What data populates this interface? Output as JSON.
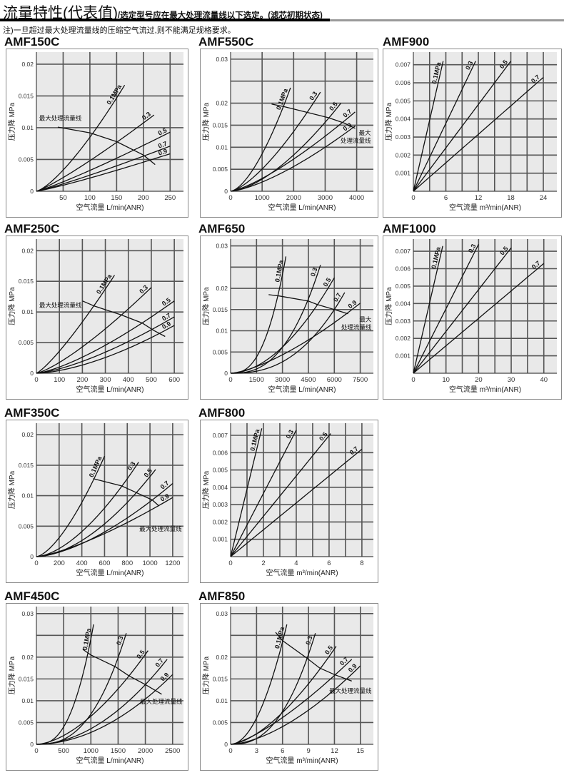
{
  "header": {
    "title": "流量特性(代表值)",
    "subtitle": "/选定型号应在最大处理流量线以下选定。(滤芯初期状态)",
    "note": "注)一旦超过最大处理流量线的压缩空气流过,则不能满足规格要求。"
  },
  "chart_data": [
    {
      "type": "line",
      "title": "AMF150C",
      "xlabel": "空气流量 L/min(ANR)",
      "ylabel": "压力降 MPa",
      "xlim": [
        0,
        275
      ],
      "ylim": [
        0,
        0.0219
      ],
      "xticks": [
        50,
        100,
        150,
        200,
        250
      ],
      "yticks": [
        0,
        0.005,
        0.01,
        0.015,
        0.02
      ],
      "grid": true,
      "grid_x_step": 50,
      "grid_y_step": 0.005,
      "series": [
        {
          "name": "0.1MPa",
          "points": [
            [
              100,
              0.0085
            ],
            [
              165,
              0.0167
            ]
          ]
        },
        {
          "name": "0.3",
          "points": [
            [
              150,
              0.0077
            ],
            [
              220,
              0.012
            ]
          ]
        },
        {
          "name": "0.5",
          "points": [
            [
              150,
              0.0052
            ],
            [
              250,
              0.0093
            ]
          ]
        },
        {
          "name": "0.7",
          "points": [
            [
              150,
              0.004
            ],
            [
              250,
              0.0071
            ]
          ]
        },
        {
          "name": "0.9",
          "points": [
            [
              150,
              0.0033
            ],
            [
              250,
              0.0059
            ]
          ]
        }
      ],
      "max_flow_line": {
        "points": [
          [
            40,
            0.0101
          ],
          [
            100,
            0.0092
          ],
          [
            150,
            0.0078
          ],
          [
            200,
            0.0057
          ],
          [
            222,
            0.0042
          ]
        ],
        "label": [
          "最大处理流量线"
        ],
        "label_at": [
          5,
          0.0112
        ]
      }
    },
    {
      "type": "line",
      "title": "AMF550C",
      "xlabel": "空气流量 L/min(ANR)",
      "ylabel": "压力降 MPa",
      "xlim": [
        0,
        4530
      ],
      "ylim": [
        0,
        0.0316
      ],
      "xticks": [
        0,
        1000,
        2000,
        3000,
        4000
      ],
      "yticks": [
        0,
        0.005,
        0.01,
        0.015,
        0.02,
        0.03
      ],
      "grid": true,
      "grid_x_step": 1000,
      "grid_y_step": 0.005,
      "series": [
        {
          "name": "0.1MPa",
          "points": [
            [
              1000,
              0.0085
            ],
            [
              1900,
              0.0235
            ]
          ]
        },
        {
          "name": "0.3",
          "points": [
            [
              1500,
              0.009
            ],
            [
              2850,
              0.0225
            ]
          ]
        },
        {
          "name": "0.5",
          "points": [
            [
              3100,
              0.0165
            ],
            [
              3500,
              0.02
            ]
          ]
        },
        {
          "name": "0.7",
          "points": [
            [
              3000,
              0.0125
            ],
            [
              3950,
              0.018
            ]
          ]
        },
        {
          "name": "0.9",
          "points": [
            [
              3000,
              0.01
            ],
            [
              3950,
              0.0148
            ]
          ]
        }
      ],
      "max_flow_line": {
        "points": [
          [
            1300,
            0.0198
          ],
          [
            1700,
            0.0192
          ],
          [
            2500,
            0.0178
          ],
          [
            3100,
            0.0167
          ],
          [
            3600,
            0.0155
          ],
          [
            3950,
            0.0143
          ]
        ],
        "label": [
          "最大",
          "处理流量线"
        ],
        "label_at": [
          4450,
          0.0128
        ]
      }
    },
    {
      "type": "line",
      "title": "AMF900",
      "xlabel": "空气流量 m³/min(ANR)",
      "ylabel": "压力降 MPa",
      "xlim": [
        0,
        26.5
      ],
      "ylim": [
        0,
        0.0077
      ],
      "xticks": [
        0,
        6,
        12,
        18,
        24
      ],
      "yticks": [
        0.001,
        0.002,
        0.003,
        0.004,
        0.005,
        0.006,
        0.007
      ],
      "grid": true,
      "grid_x_step": 3,
      "grid_y_step": 0.001,
      "series": [
        {
          "name": "0.1MPa",
          "points": [
            [
              5.5,
              0.0072
            ]
          ]
        },
        {
          "name": "0.3",
          "points": [
            [
              11.5,
              0.0072
            ]
          ]
        },
        {
          "name": "0.5",
          "points": [
            [
              18,
              0.0072
            ]
          ]
        },
        {
          "name": "0.7",
          "points": [
            [
              24,
              0.0063
            ]
          ]
        }
      ]
    },
    {
      "type": "line",
      "title": "AMF250C",
      "xlabel": "空气流量 L/min(ANR)",
      "ylabel": "压力降 MPa",
      "xlim": [
        0,
        640
      ],
      "ylim": [
        0,
        0.0219
      ],
      "xticks": [
        0,
        100,
        200,
        300,
        400,
        500,
        600
      ],
      "yticks": [
        0,
        0.005,
        0.01,
        0.015,
        0.02
      ],
      "grid": true,
      "grid_x_step": 100,
      "grid_y_step": 0.005,
      "series": [
        {
          "name": "0.1MPa",
          "points": [
            [
              250,
              0.011
            ],
            [
              340,
              0.016
            ]
          ]
        },
        {
          "name": "0.3",
          "points": [
            [
              370,
              0.0095
            ],
            [
              500,
              0.014
            ]
          ]
        },
        {
          "name": "0.5",
          "points": [
            [
              460,
              0.0082
            ],
            [
              600,
              0.0118
            ]
          ]
        },
        {
          "name": "0.7",
          "points": [
            [
              500,
              0.0071
            ],
            [
              600,
              0.0092
            ]
          ]
        },
        {
          "name": "0.9",
          "points": [
            [
              520,
              0.0062
            ],
            [
              600,
              0.0078
            ]
          ]
        }
      ],
      "max_flow_line": {
        "points": [
          [
            200,
            0.0118
          ],
          [
            250,
            0.011
          ],
          [
            370,
            0.0095
          ],
          [
            460,
            0.0082
          ],
          [
            510,
            0.007
          ],
          [
            560,
            0.006
          ]
        ],
        "label": [
          "最大处理流量线"
        ],
        "label_at": [
          12,
          0.0108
        ]
      }
    },
    {
      "type": "line",
      "title": "AMF650",
      "xlabel": "空气流量 L/min(ANR)",
      "ylabel": "压力降 MPa",
      "xlim": [
        0,
        8260
      ],
      "ylim": [
        0,
        0.0316
      ],
      "xticks": [
        0,
        1500,
        3000,
        4500,
        6000,
        7500
      ],
      "yticks": [
        0,
        0.005,
        0.01,
        0.015,
        0.02,
        0.03
      ],
      "grid": true,
      "grid_x_step": 1500,
      "grid_y_step": 0.005,
      "series": [
        {
          "name": "0.1MPa",
          "points": [
            [
              2800,
              0.018
            ],
            [
              3200,
              0.0275
            ]
          ]
        },
        {
          "name": "0.3",
          "points": [
            [
              4500,
              0.017
            ],
            [
              5200,
              0.0255
            ]
          ]
        },
        {
          "name": "0.5",
          "points": [
            [
              5000,
              0.016
            ],
            [
              6000,
              0.0225
            ]
          ]
        },
        {
          "name": "0.7",
          "points": [
            [
              6000,
              0.015
            ],
            [
              6600,
              0.019
            ]
          ]
        },
        {
          "name": "0.9",
          "points": [
            [
              6700,
              0.014
            ],
            [
              7500,
              0.0165
            ]
          ]
        }
      ],
      "max_flow_line": {
        "points": [
          [
            2200,
            0.0185
          ],
          [
            2800,
            0.0182
          ],
          [
            4500,
            0.017
          ],
          [
            5000,
            0.0162
          ],
          [
            6000,
            0.015
          ],
          [
            6800,
            0.014
          ]
        ],
        "label": [
          "最大",
          "处理流量线"
        ],
        "label_at": [
          8150,
          0.0122
        ]
      }
    },
    {
      "type": "line",
      "title": "AMF1000",
      "xlabel": "空气流量 m³/min(ANR)",
      "ylabel": "压力降 MPa",
      "xlim": [
        0,
        44
      ],
      "ylim": [
        0,
        0.0077
      ],
      "xticks": [
        0,
        10,
        20,
        30,
        40
      ],
      "yticks": [
        0.001,
        0.002,
        0.003,
        0.004,
        0.005,
        0.006,
        0.007
      ],
      "grid": true,
      "grid_x_step": 5,
      "grid_y_step": 0.001,
      "series": [
        {
          "name": "0.1MPa",
          "points": [
            [
              9,
              0.0073
            ]
          ]
        },
        {
          "name": "0.3",
          "points": [
            [
              20,
              0.0074
            ]
          ]
        },
        {
          "name": "0.5",
          "points": [
            [
              30,
              0.0072
            ]
          ]
        },
        {
          "name": "0.7",
          "points": [
            [
              40,
              0.0063
            ]
          ]
        }
      ]
    },
    {
      "type": "line",
      "title": "AMF350C",
      "xlabel": "空气流量 L/min(ANR)",
      "ylabel": "压力降 MPa",
      "xlim": [
        0,
        1295
      ],
      "ylim": [
        0,
        0.0219
      ],
      "xticks": [
        0,
        200,
        400,
        600,
        800,
        1000,
        1200
      ],
      "yticks": [
        0,
        0.005,
        0.01,
        0.015,
        0.02
      ],
      "grid": true,
      "grid_x_step": 200,
      "grid_y_step": 0.005,
      "series": [
        {
          "name": "0.1MPa",
          "points": [
            [
              500,
              0.0125
            ],
            [
              600,
              0.0165
            ]
          ]
        },
        {
          "name": "0.3",
          "points": [
            [
              750,
              0.0115
            ],
            [
              900,
              0.0155
            ]
          ]
        },
        {
          "name": "0.5",
          "points": [
            [
              880,
              0.0105
            ],
            [
              1050,
              0.0143
            ]
          ]
        },
        {
          "name": "0.7",
          "points": [
            [
              1020,
              0.0093
            ],
            [
              1200,
              0.012
            ]
          ]
        },
        {
          "name": "0.9",
          "points": [
            [
              1070,
              0.0083
            ],
            [
              1200,
              0.0097
            ]
          ]
        }
      ],
      "max_flow_line": {
        "points": [
          [
            500,
            0.0128
          ],
          [
            750,
            0.0116
          ],
          [
            880,
            0.0105
          ],
          [
            1020,
            0.0093
          ],
          [
            1080,
            0.0083
          ]
        ],
        "label": [
          "最大处理流量线"
        ],
        "label_at": [
          1280,
          0.0042
        ]
      }
    },
    {
      "type": "line",
      "title": "AMF800",
      "xlabel": "空气流量 m³/min(ANR)",
      "ylabel": "压力降 MPa",
      "xlim": [
        0,
        8.7
      ],
      "ylim": [
        0,
        0.0077
      ],
      "xticks": [
        0,
        2,
        4,
        6,
        8
      ],
      "yticks": [
        0.001,
        0.002,
        0.003,
        0.004,
        0.005,
        0.006,
        0.007
      ],
      "grid": true,
      "grid_x_step": 1,
      "grid_y_step": 0.001,
      "series": [
        {
          "name": "0.1MPa",
          "points": [
            [
              1.9,
              0.0074
            ]
          ]
        },
        {
          "name": "0.3",
          "points": [
            [
              4,
              0.0073
            ]
          ]
        },
        {
          "name": "0.5",
          "points": [
            [
              6.1,
              0.0071
            ]
          ]
        },
        {
          "name": "0.7",
          "points": [
            [
              8,
              0.0062
            ]
          ]
        }
      ]
    },
    {
      "type": "line",
      "title": "AMF450C",
      "xlabel": "空气流量 L/min(ANR)",
      "ylabel": "压力降 MPa",
      "xlim": [
        0,
        2700
      ],
      "ylim": [
        0,
        0.0316
      ],
      "xticks": [
        0,
        500,
        1000,
        1500,
        2000,
        2500
      ],
      "yticks": [
        0,
        0.005,
        0.01,
        0.015,
        0.02,
        0.03
      ],
      "grid": true,
      "grid_x_step": 500,
      "grid_y_step": 0.005,
      "series": [
        {
          "name": "0.1MPa",
          "points": [
            [
              1000,
              0.0205
            ],
            [
              1050,
              0.0275
            ]
          ]
        },
        {
          "name": "0.3",
          "points": [
            [
              1450,
              0.0178
            ],
            [
              1650,
              0.0255
            ]
          ]
        },
        {
          "name": "0.5",
          "points": [
            [
              1700,
              0.0157
            ],
            [
              2050,
              0.0215
            ]
          ]
        },
        {
          "name": "0.7",
          "points": [
            [
              2000,
              0.0137
            ],
            [
              2400,
              0.0195
            ]
          ]
        },
        {
          "name": "0.9",
          "points": [
            [
              2200,
              0.0125
            ],
            [
              2500,
              0.016
            ]
          ]
        }
      ],
      "max_flow_line": {
        "points": [
          [
            850,
            0.0218
          ],
          [
            1000,
            0.0205
          ],
          [
            1450,
            0.0178
          ],
          [
            1700,
            0.0157
          ],
          [
            2000,
            0.0137
          ],
          [
            2300,
            0.0115
          ]
        ],
        "label": [
          "最大处理流量线"
        ],
        "label_at": [
          2680,
          0.0093
        ]
      }
    },
    {
      "type": "line",
      "title": "AMF850",
      "xlabel": "空气流量 m³/min(ANR)",
      "ylabel": "压力降 MPa",
      "xlim": [
        0,
        16.5
      ],
      "ylim": [
        0,
        0.0316
      ],
      "xticks": [
        0,
        3,
        6,
        9,
        12,
        15
      ],
      "yticks": [
        0,
        0.005,
        0.01,
        0.015,
        0.02,
        0.03
      ],
      "grid": true,
      "grid_x_step": 3,
      "grid_y_step": 0.005,
      "series": [
        {
          "name": "0.1MPa",
          "points": [
            [
              6,
              0.0235
            ],
            [
              6.5,
              0.0275
            ]
          ]
        },
        {
          "name": "0.3",
          "points": [
            [
              8.8,
              0.0195
            ],
            [
              9.8,
              0.0255
            ]
          ]
        },
        {
          "name": "0.5",
          "points": [
            [
              10.3,
              0.0172
            ],
            [
              12.2,
              0.0225
            ]
          ]
        },
        {
          "name": "0.7",
          "points": [
            [
              12,
              0.0158
            ],
            [
              14,
              0.0195
            ]
          ]
        },
        {
          "name": "0.9",
          "points": [
            [
              13.3,
              0.0148
            ],
            [
              15,
              0.018
            ]
          ]
        }
      ],
      "max_flow_line": {
        "points": [
          [
            5.2,
            0.0257
          ],
          [
            6,
            0.0238
          ],
          [
            8.8,
            0.0198
          ],
          [
            10.3,
            0.0175
          ],
          [
            12,
            0.016
          ],
          [
            14,
            0.0145
          ]
        ],
        "label": [
          "最大处理流量线"
        ],
        "label_at": [
          16.3,
          0.0118
        ]
      }
    }
  ]
}
